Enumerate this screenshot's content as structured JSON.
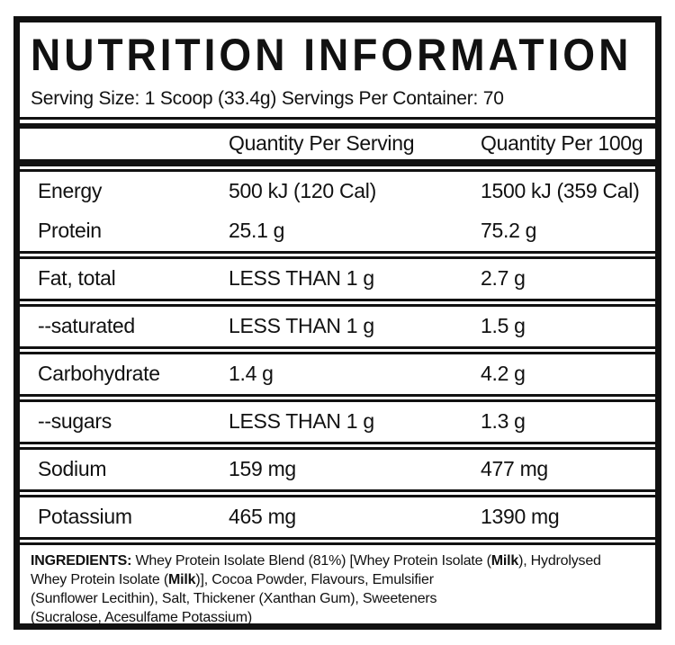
{
  "label": {
    "title": "NUTRITION INFORMATION",
    "serving_line": "Serving Size: 1 Scoop (33.4g) Servings Per Container: 70",
    "colors": {
      "ink": "#111111",
      "background": "#ffffff"
    }
  },
  "table": {
    "headers": {
      "per_serving": "Quantity Per Serving",
      "per_100g": "Quantity Per 100g"
    },
    "groups": [
      {
        "rows": [
          {
            "name": "Energy",
            "per_serving": "500 kJ (120 Cal)",
            "per_100g": "1500 kJ (359 Cal)"
          },
          {
            "name": "Protein",
            "per_serving": "25.1 g",
            "per_100g": "75.2 g"
          }
        ]
      },
      {
        "rows": [
          {
            "name": "Fat, total",
            "per_serving": "LESS THAN 1 g",
            "per_100g": "2.7 g"
          }
        ]
      },
      {
        "rows": [
          {
            "name": "--saturated",
            "per_serving": "LESS THAN 1 g",
            "per_100g": "1.5 g"
          }
        ]
      },
      {
        "rows": [
          {
            "name": "Carbohydrate",
            "per_serving": "1.4 g",
            "per_100g": "4.2 g"
          }
        ]
      },
      {
        "rows": [
          {
            "name": "--sugars",
            "per_serving": "LESS THAN 1 g",
            "per_100g": "1.3 g"
          }
        ]
      },
      {
        "rows": [
          {
            "name": "Sodium",
            "per_serving": "159 mg",
            "per_100g": "477 mg"
          }
        ]
      },
      {
        "rows": [
          {
            "name": "Potassium",
            "per_serving": "465 mg",
            "per_100g": "1390 mg"
          }
        ]
      }
    ]
  },
  "ingredients": {
    "lines": [
      [
        {
          "text": "INGREDIENTS:",
          "bold": true
        },
        {
          "text": " Whey Protein Isolate Blend (81%) [Whey Protein Isolate (",
          "bold": false
        },
        {
          "text": "Milk",
          "bold": true
        },
        {
          "text": "), Hydrolysed",
          "bold": false
        }
      ],
      [
        {
          "text": "Whey Protein Isolate (",
          "bold": false
        },
        {
          "text": "Milk",
          "bold": true
        },
        {
          "text": ")], Cocoa Powder, Flavours, Emulsifier",
          "bold": false
        }
      ],
      [
        {
          "text": "(Sunflower Lecithin), Salt, Thickener (Xanthan Gum), Sweeteners",
          "bold": false
        }
      ],
      [
        {
          "text": "(Sucralose, Acesulfame Potassium)",
          "bold": false
        }
      ]
    ]
  }
}
